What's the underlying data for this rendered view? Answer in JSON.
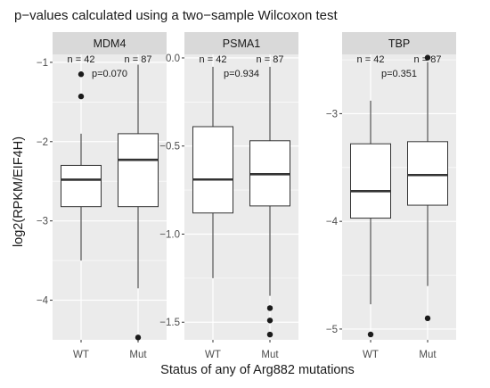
{
  "chart_data": {
    "type": "boxplot",
    "title": "p−values calculated using a two−sample Wilcoxon test",
    "xlabel": "Status of any of Arg882 mutations",
    "ylabel": "log2(RPKM/EIF4H)",
    "categories": [
      "WT",
      "Mut"
    ],
    "grid": true,
    "panels": [
      {
        "name": "MDM4",
        "ylim": [
          -4.5,
          -0.9
        ],
        "yticks": [
          -1,
          -2,
          -3,
          -4
        ],
        "ytick_labels": [
          "−1",
          "−2",
          "−3",
          "−4"
        ],
        "n_labels": [
          "n = 42",
          "n = 87"
        ],
        "p_label": "p=0.070",
        "boxes": [
          {
            "group": "WT",
            "whisker_low": -3.5,
            "q1": -2.82,
            "median": -2.48,
            "q3": -2.3,
            "whisker_high": -1.9,
            "outliers": [
              -1.15,
              -1.43
            ]
          },
          {
            "group": "Mut",
            "whisker_low": -3.85,
            "q1": -2.82,
            "median": -2.23,
            "q3": -1.9,
            "whisker_high": -1.03,
            "outliers": [
              -4.47
            ]
          }
        ]
      },
      {
        "name": "PSMA1",
        "ylim": [
          -1.6,
          0.02
        ],
        "yticks": [
          0,
          -0.5,
          -1,
          -1.5
        ],
        "ytick_labels": [
          "0.0",
          "−0.5",
          "−1.0",
          "−1.5"
        ],
        "n_labels": [
          "n = 42",
          "n = 87"
        ],
        "p_label": "p=0.934",
        "boxes": [
          {
            "group": "WT",
            "whisker_low": -1.25,
            "q1": -0.88,
            "median": -0.69,
            "q3": -0.39,
            "whisker_high": -0.05,
            "outliers": []
          },
          {
            "group": "Mut",
            "whisker_low": -1.35,
            "q1": -0.84,
            "median": -0.66,
            "q3": -0.47,
            "whisker_high": -0.05,
            "outliers": [
              -1.42,
              -1.49,
              -1.57
            ]
          }
        ]
      },
      {
        "name": "TBP",
        "ylim": [
          -5.1,
          -2.45
        ],
        "yticks": [
          -3,
          -4,
          -5
        ],
        "ytick_labels": [
          "−3",
          "−4",
          "−5"
        ],
        "n_labels": [
          "n = 42",
          "n = 87"
        ],
        "p_label": "p=0.351",
        "boxes": [
          {
            "group": "WT",
            "whisker_low": -4.77,
            "q1": -3.97,
            "median": -3.72,
            "q3": -3.28,
            "whisker_high": -2.88,
            "outliers": [
              -5.05
            ]
          },
          {
            "group": "Mut",
            "whisker_low": -4.6,
            "q1": -3.85,
            "median": -3.57,
            "q3": -3.26,
            "whisker_high": -2.52,
            "outliers": [
              -2.48,
              -4.9
            ]
          }
        ]
      }
    ]
  },
  "colors": {
    "panel_bg": "#ebebeb",
    "strip_bg": "#d9d9d9",
    "grid": "#ffffff",
    "box_fill": "#ffffff",
    "line": "#333333",
    "point": "#1a1a1a"
  }
}
